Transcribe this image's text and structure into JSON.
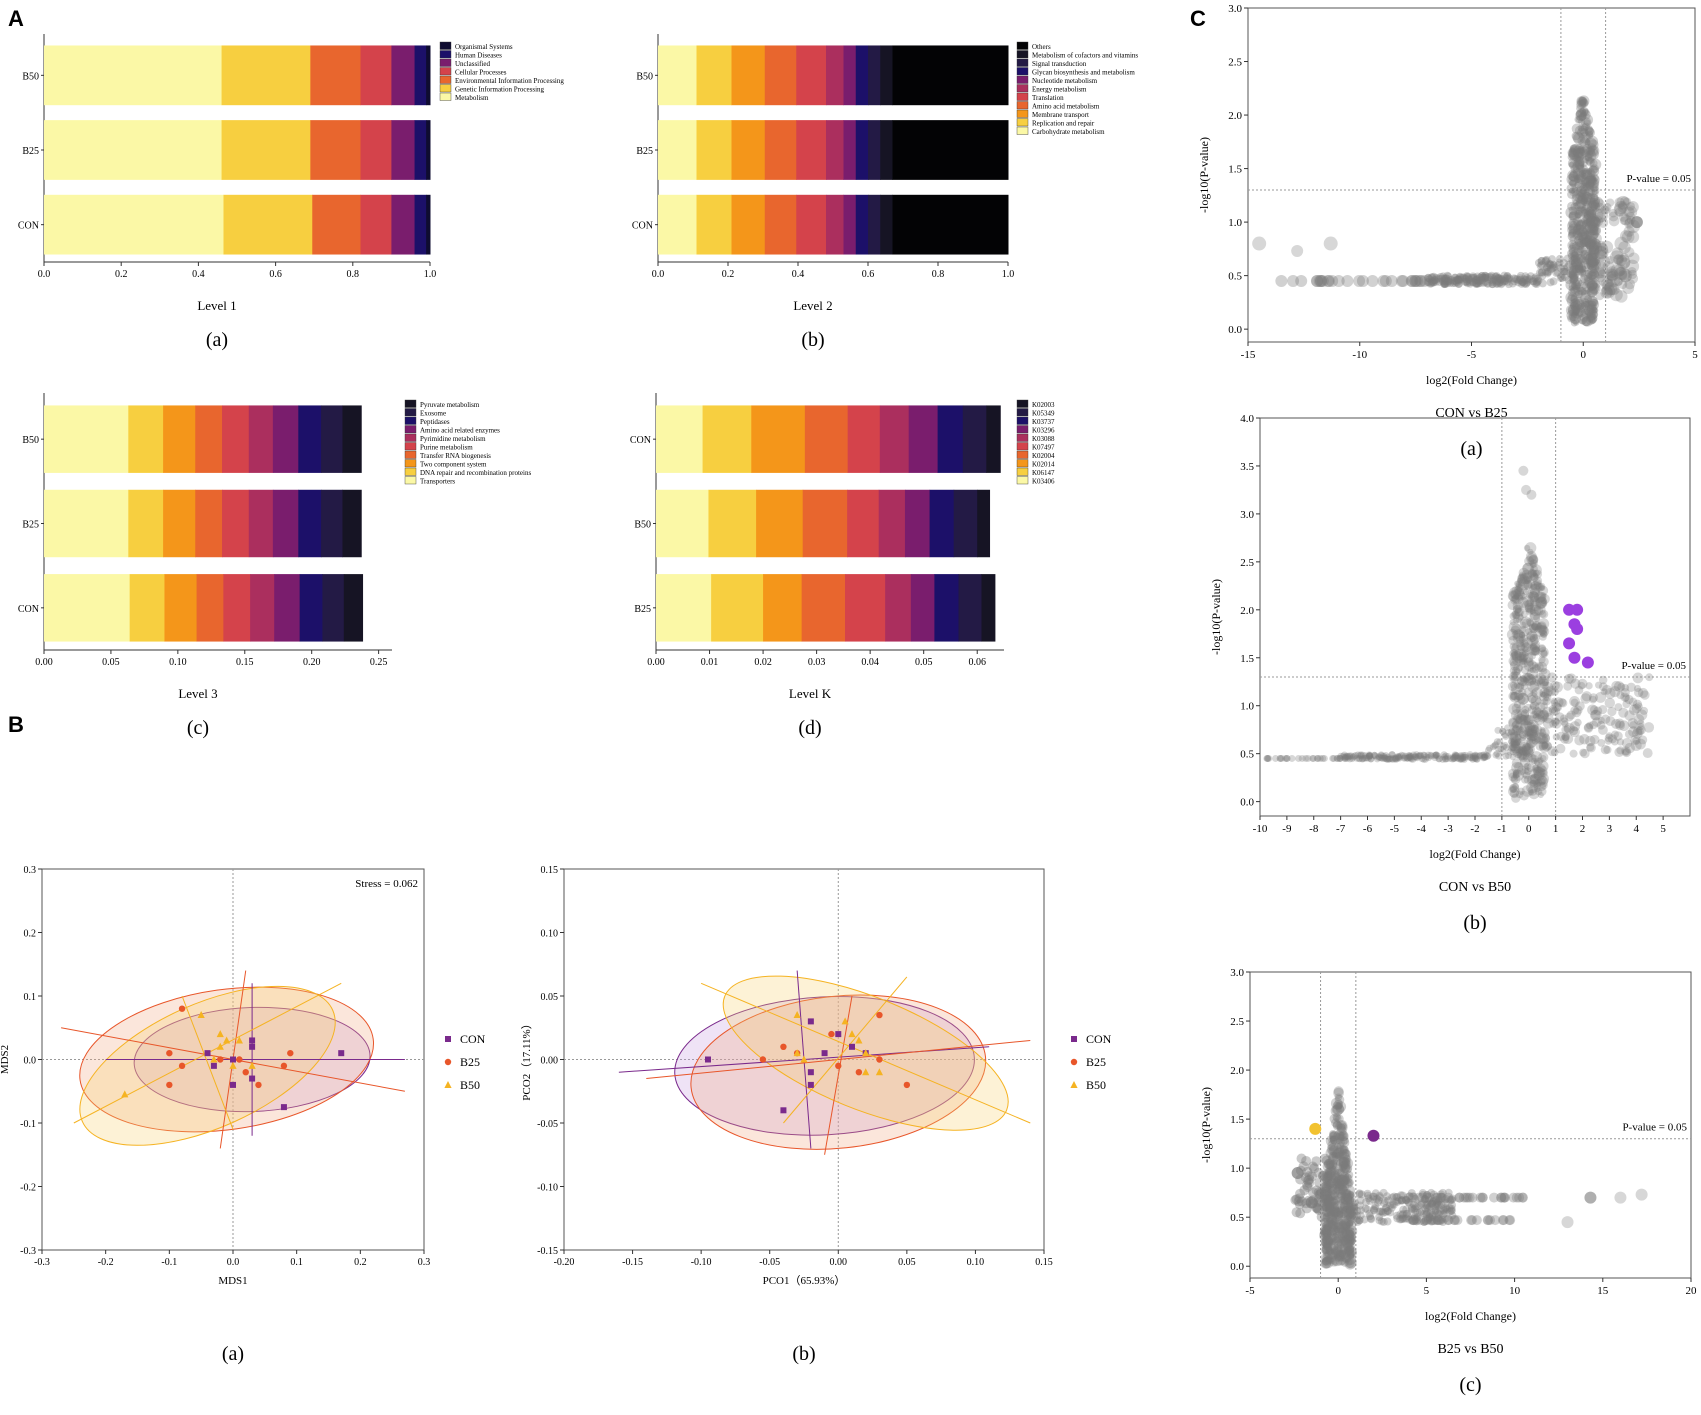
{
  "panels": {
    "A": "A",
    "B": "B",
    "C": "C"
  },
  "palette": [
    "#fbf8a6",
    "#f7cf40",
    "#f4961a",
    "#e8662e",
    "#d4434b",
    "#ab2f5e",
    "#7a1d6d",
    "#1c1069",
    "#231a45",
    "#161424",
    "#030305"
  ],
  "chart_data": [
    {
      "id": "A-a",
      "type": "bar",
      "orientation": "horizontal",
      "stacked": true,
      "title": "Level 1",
      "caption": "(a)",
      "categories": [
        "B50",
        "B25",
        "CON"
      ],
      "legend": [
        "Organismal Systems",
        "Human Diseases",
        "Unclassified",
        "Cellular Processes",
        "Environmental Information Processing",
        "Genetic Information Processing",
        "Metabolism"
      ],
      "xlim": [
        0,
        1.0
      ],
      "xticks": [
        "0.0",
        "0.2",
        "0.4",
        "0.6",
        "0.8",
        "1.0"
      ],
      "series": [
        {
          "name": "Metabolism",
          "values": [
            0.46,
            0.46,
            0.465
          ]
        },
        {
          "name": "Genetic Information Processing",
          "values": [
            0.23,
            0.23,
            0.23
          ]
        },
        {
          "name": "Environmental Information Processing",
          "values": [
            0.13,
            0.13,
            0.125
          ]
        },
        {
          "name": "Cellular Processes",
          "values": [
            0.08,
            0.08,
            0.08
          ]
        },
        {
          "name": "Unclassified",
          "values": [
            0.06,
            0.06,
            0.06
          ]
        },
        {
          "name": "Human Diseases",
          "values": [
            0.03,
            0.03,
            0.03
          ]
        },
        {
          "name": "Organismal Systems",
          "values": [
            0.01,
            0.01,
            0.01
          ]
        }
      ]
    },
    {
      "id": "A-b",
      "type": "bar",
      "orientation": "horizontal",
      "stacked": true,
      "title": "Level 2",
      "caption": "(b)",
      "categories": [
        "B50",
        "B25",
        "CON"
      ],
      "legend": [
        "Others",
        "Metabolism of cofactors and vitamins",
        "Signal transduction",
        "Glycan biosynthesis and metabolism",
        "Nucleotide metabolism",
        "Energy metabolism",
        "Translation",
        "Amino acid metabolism",
        "Membrane transport",
        "Replication and repair",
        "Carbohydrate metabolism"
      ],
      "xlim": [
        0,
        1.0
      ],
      "xticks": [
        "0.0",
        "0.2",
        "0.4",
        "0.6",
        "0.8",
        "1.0"
      ],
      "series": [
        {
          "name": "Carbohydrate metabolism",
          "values": [
            0.11,
            0.11,
            0.11
          ]
        },
        {
          "name": "Replication and repair",
          "values": [
            0.1,
            0.1,
            0.1
          ]
        },
        {
          "name": "Membrane transport",
          "values": [
            0.095,
            0.095,
            0.095
          ]
        },
        {
          "name": "Amino acid metabolism",
          "values": [
            0.09,
            0.09,
            0.09
          ]
        },
        {
          "name": "Translation",
          "values": [
            0.085,
            0.085,
            0.085
          ]
        },
        {
          "name": "Energy metabolism",
          "values": [
            0.05,
            0.05,
            0.05
          ]
        },
        {
          "name": "Nucleotide metabolism",
          "values": [
            0.035,
            0.035,
            0.035
          ]
        },
        {
          "name": "Glycan biosynthesis and metabolism",
          "values": [
            0.035,
            0.035,
            0.035
          ]
        },
        {
          "name": "Signal transduction",
          "values": [
            0.035,
            0.035,
            0.035
          ]
        },
        {
          "name": "Metabolism of cofactors and vitamins",
          "values": [
            0.035,
            0.035,
            0.035
          ]
        },
        {
          "name": "Others",
          "values": [
            0.33,
            0.33,
            0.33
          ]
        }
      ]
    },
    {
      "id": "A-c",
      "type": "bar",
      "orientation": "horizontal",
      "stacked": true,
      "title": "Level 3",
      "caption": "(c)",
      "categories": [
        "B50",
        "B25",
        "CON"
      ],
      "legend": [
        "Pyruvate metabolism",
        "Exosome",
        "Peptidases",
        "Amino acid related enzymes",
        "Pyrimidine metabolism",
        "Purine metabolism",
        "Transfer RNA biogenesis",
        "Two component system",
        "DNA repair and recombination proteins",
        "Transporters"
      ],
      "xlim": [
        0,
        0.26
      ],
      "xticks": [
        "0.00",
        "0.05",
        "0.10",
        "0.15",
        "0.20",
        "0.25"
      ],
      "series": [
        {
          "name": "Transporters",
          "values": [
            0.063,
            0.063,
            0.064
          ]
        },
        {
          "name": "DNA repair and recombination proteins",
          "values": [
            0.026,
            0.026,
            0.026
          ]
        },
        {
          "name": "Two component system",
          "values": [
            0.024,
            0.024,
            0.024
          ]
        },
        {
          "name": "Transfer RNA biogenesis",
          "values": [
            0.02,
            0.02,
            0.02
          ]
        },
        {
          "name": "Purine metabolism",
          "values": [
            0.02,
            0.02,
            0.02
          ]
        },
        {
          "name": "Pyrimidine metabolism",
          "values": [
            0.018,
            0.018,
            0.018
          ]
        },
        {
          "name": "Amino acid related enzymes",
          "values": [
            0.019,
            0.019,
            0.019
          ]
        },
        {
          "name": "Peptidases",
          "values": [
            0.017,
            0.017,
            0.017
          ]
        },
        {
          "name": "Exosome",
          "values": [
            0.016,
            0.016,
            0.016
          ]
        },
        {
          "name": "Pyruvate metabolism",
          "values": [
            0.014,
            0.014,
            0.014
          ]
        }
      ]
    },
    {
      "id": "A-d",
      "type": "bar",
      "orientation": "horizontal",
      "stacked": true,
      "title": "Level K",
      "caption": "(d)",
      "categories": [
        "CON",
        "B50",
        "B25"
      ],
      "legend": [
        "K02003",
        "K05349",
        "K03737",
        "K03296",
        "K03088",
        "K07497",
        "K02004",
        "K02014",
        "K06147",
        "K03406"
      ],
      "xlim": [
        0,
        0.065
      ],
      "xticks": [
        "0.00",
        "0.01",
        "0.02",
        "0.03",
        "0.04",
        "0.05",
        "0.06"
      ],
      "series": [
        {
          "name": "K03406",
          "values": [
            0.0087,
            0.0098,
            0.0103
          ]
        },
        {
          "name": "K06147",
          "values": [
            0.0091,
            0.0089,
            0.0097
          ]
        },
        {
          "name": "K02014",
          "values": [
            0.01,
            0.0087,
            0.0072
          ]
        },
        {
          "name": "K02004",
          "values": [
            0.008,
            0.0083,
            0.0081
          ]
        },
        {
          "name": "K07497",
          "values": [
            0.006,
            0.0059,
            0.0075
          ]
        },
        {
          "name": "K03088",
          "values": [
            0.0054,
            0.0049,
            0.0048
          ]
        },
        {
          "name": "K03296",
          "values": [
            0.0054,
            0.0046,
            0.0044
          ]
        },
        {
          "name": "K03737",
          "values": [
            0.0047,
            0.0045,
            0.0045
          ]
        },
        {
          "name": "K05349",
          "values": [
            0.0044,
            0.0044,
            0.0043
          ]
        },
        {
          "name": "K02003",
          "values": [
            0.0026,
            0.0023,
            0.0025
          ]
        }
      ]
    },
    {
      "id": "B-a",
      "type": "scatter",
      "title": "",
      "caption": "(a)",
      "xlabel": "MDS1",
      "ylabel": "MDS2",
      "annotation": "Stress = 0.062",
      "xlim": [
        -0.3,
        0.3
      ],
      "ylim": [
        -0.3,
        0.3
      ],
      "xticks": [
        "-0.3",
        "-0.2",
        "-0.1",
        "0.0",
        "0.1",
        "0.2",
        "0.3"
      ],
      "yticks": [
        "0.3",
        "0.2",
        "0.1",
        "0.0",
        "-0.1",
        "-0.2",
        "-0.3"
      ],
      "legend": [
        "CON",
        "B25",
        "B50"
      ],
      "series": [
        {
          "name": "CON",
          "marker": "square",
          "color": "#7a2a8c",
          "points": [
            [
              -0.04,
              0.01
            ],
            [
              0.03,
              0.03
            ],
            [
              0.03,
              0.02
            ],
            [
              0.17,
              0.01
            ],
            [
              0.0,
              0.0
            ],
            [
              0.03,
              -0.03
            ],
            [
              -0.03,
              -0.01
            ],
            [
              0.08,
              -0.075
            ],
            [
              0.0,
              -0.04
            ]
          ]
        },
        {
          "name": "B25",
          "marker": "circle",
          "color": "#e8562a",
          "points": [
            [
              -0.08,
              0.08
            ],
            [
              -0.1,
              0.01
            ],
            [
              -0.08,
              -0.01
            ],
            [
              -0.02,
              0.0
            ],
            [
              0.01,
              0.0
            ],
            [
              0.09,
              0.01
            ],
            [
              0.08,
              -0.01
            ],
            [
              0.04,
              -0.04
            ],
            [
              -0.1,
              -0.04
            ],
            [
              0.02,
              -0.02
            ]
          ]
        },
        {
          "name": "B50",
          "marker": "triangle",
          "color": "#f5b322",
          "points": [
            [
              -0.05,
              0.07
            ],
            [
              -0.02,
              0.04
            ],
            [
              -0.01,
              0.03
            ],
            [
              0.01,
              0.03
            ],
            [
              -0.02,
              0.02
            ],
            [
              0.0,
              -0.01
            ],
            [
              -0.17,
              -0.055
            ],
            [
              -0.03,
              0.0
            ],
            [
              0.03,
              -0.01
            ]
          ]
        }
      ]
    },
    {
      "id": "B-b",
      "type": "scatter",
      "title": "",
      "caption": "(b)",
      "xlabel": "PCO1（65.93%）",
      "ylabel": "PCO2（17.11%）",
      "xlim": [
        -0.2,
        0.15
      ],
      "ylim": [
        -0.15,
        0.15
      ],
      "xticks": [
        "-0.20",
        "-0.15",
        "-0.10",
        "-0.05",
        "0.00",
        "0.05",
        "0.10",
        "0.15"
      ],
      "yticks": [
        "0.15",
        "0.10",
        "0.05",
        "0.00",
        "-0.05",
        "-0.10",
        "-0.15"
      ],
      "legend": [
        "CON",
        "B25",
        "B50"
      ],
      "series": [
        {
          "name": "CON",
          "marker": "square",
          "color": "#7a2a8c",
          "points": [
            [
              -0.095,
              0.0
            ],
            [
              -0.04,
              -0.04
            ],
            [
              -0.02,
              -0.01
            ],
            [
              0.0,
              0.02
            ],
            [
              -0.01,
              0.005
            ],
            [
              0.01,
              0.01
            ],
            [
              0.02,
              0.005
            ],
            [
              -0.02,
              0.03
            ],
            [
              -0.02,
              -0.02
            ]
          ]
        },
        {
          "name": "B25",
          "marker": "circle",
          "color": "#e8562a",
          "points": [
            [
              -0.055,
              0.0
            ],
            [
              -0.04,
              0.01
            ],
            [
              -0.03,
              0.005
            ],
            [
              0.0,
              -0.005
            ],
            [
              0.015,
              -0.01
            ],
            [
              0.03,
              0.0
            ],
            [
              0.05,
              -0.02
            ],
            [
              0.03,
              0.035
            ],
            [
              -0.005,
              0.02
            ]
          ]
        },
        {
          "name": "B50",
          "marker": "triangle",
          "color": "#f5b322",
          "points": [
            [
              -0.03,
              0.035
            ],
            [
              0.005,
              0.03
            ],
            [
              0.01,
              0.02
            ],
            [
              0.015,
              0.015
            ],
            [
              0.02,
              0.005
            ],
            [
              0.02,
              -0.01
            ],
            [
              0.03,
              -0.01
            ],
            [
              -0.025,
              0.0
            ],
            [
              -0.03,
              0.005
            ]
          ]
        }
      ]
    },
    {
      "id": "C-a",
      "type": "scatter",
      "title": "CON vs B25",
      "caption": "(a)",
      "xlabel": "log2(Fold Change)",
      "ylabel": "-log10(P-value)",
      "threshold_label": "P-value = 0.05",
      "xlim": [
        -15,
        5
      ],
      "ylim": [
        -0.12,
        3.0
      ],
      "xticks": [
        "-15",
        "-10",
        "-5",
        "0",
        "5"
      ],
      "yticks": [
        "3.0",
        "2.5",
        "2.0",
        "1.5",
        "1.0",
        "0.5",
        "0.0"
      ],
      "threshold_y": 1.3,
      "fc_lines": [
        -1,
        1
      ],
      "highlight": []
    },
    {
      "id": "C-b",
      "type": "scatter",
      "title": "CON vs B50",
      "caption": "(b)",
      "xlabel": "log2(Fold Change)",
      "ylabel": "-log10(P-value)",
      "threshold_label": "P-value = 0.05",
      "xlim": [
        -10,
        6
      ],
      "ylim": [
        -0.15,
        4.0
      ],
      "xticks": [
        "-10",
        "-9",
        "-8",
        "-7",
        "-6",
        "-5",
        "-4",
        "-3",
        "-2",
        "-1",
        "0",
        "1",
        "2",
        "3",
        "4",
        "5"
      ],
      "yticks": [
        "4.0",
        "3.5",
        "3.0",
        "2.5",
        "2.0",
        "1.5",
        "1.0",
        "0.5",
        "0.0"
      ],
      "threshold_y": 1.3,
      "fc_lines": [
        -1,
        1
      ],
      "highlight": [
        {
          "x": 1.5,
          "y": 2.0,
          "color": "#9b3fe0"
        },
        {
          "x": 1.8,
          "y": 2.0,
          "color": "#9b3fe0"
        },
        {
          "x": 1.7,
          "y": 1.85,
          "color": "#9b3fe0"
        },
        {
          "x": 1.8,
          "y": 1.8,
          "color": "#9b3fe0"
        },
        {
          "x": 1.5,
          "y": 1.65,
          "color": "#9b3fe0"
        },
        {
          "x": 1.7,
          "y": 1.5,
          "color": "#9b3fe0"
        },
        {
          "x": 2.2,
          "y": 1.45,
          "color": "#9b3fe0"
        }
      ]
    },
    {
      "id": "C-c",
      "type": "scatter",
      "title": "B25 vs B50",
      "caption": "(c)",
      "xlabel": "log2(Fold Change)",
      "ylabel": "-log10(P-value)",
      "threshold_label": "P-value = 0.05",
      "xlim": [
        -5,
        20
      ],
      "ylim": [
        -0.12,
        3.0
      ],
      "xticks": [
        "-5",
        "0",
        "5",
        "10",
        "15",
        "20"
      ],
      "yticks": [
        "3.0",
        "2.5",
        "2.0",
        "1.5",
        "1.0",
        "0.5",
        "0.0"
      ],
      "threshold_y": 1.3,
      "fc_lines": [
        -1,
        1
      ],
      "highlight": [
        {
          "x": -1.3,
          "y": 1.4,
          "color": "#f2c230"
        },
        {
          "x": 2.0,
          "y": 1.33,
          "color": "#7a2a8c"
        }
      ]
    }
  ]
}
